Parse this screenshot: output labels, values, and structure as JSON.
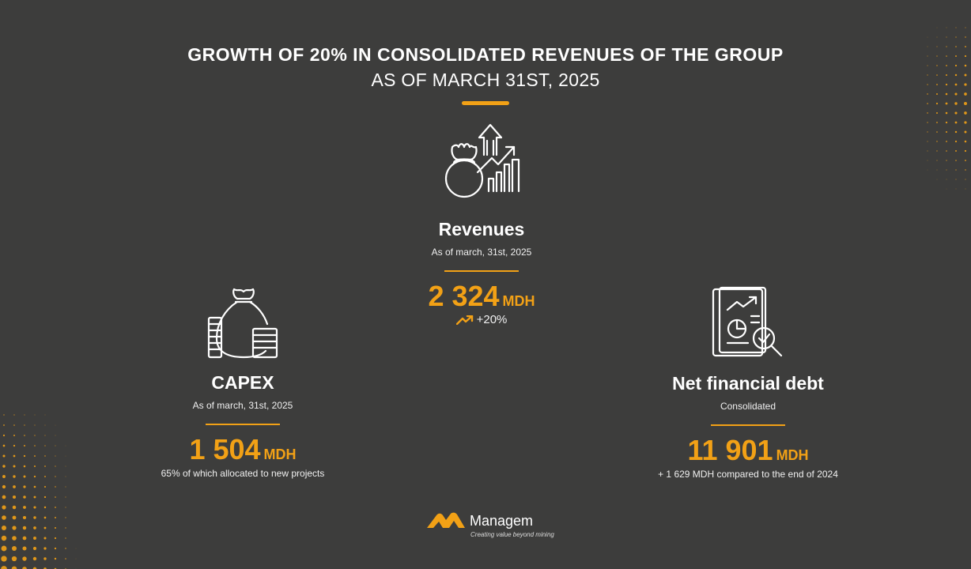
{
  "header": {
    "title": "GROWTH OF 20% IN CONSOLIDATED REVENUES OF THE GROUP",
    "subtitle": "AS OF MARCH 31ST, 2025"
  },
  "colors": {
    "accent": "#f2a116",
    "background": "#3d3d3c",
    "text": "#ffffff"
  },
  "revenues": {
    "icon": "money-bag-growth-chart-icon",
    "title": "Revenues",
    "subtitle": "As of march, 31st, 2025",
    "value": "2 324",
    "unit": "MDH",
    "trend_icon": "trend-up-icon",
    "trend": "+20%"
  },
  "capex": {
    "icon": "money-bag-coins-icon",
    "title": "CAPEX",
    "subtitle": "As of march,  31st, 2025",
    "value": "1 504",
    "unit": "MDH",
    "note": "65% of which allocated to new projects"
  },
  "debt": {
    "icon": "report-magnifier-icon",
    "title": "Net financial debt",
    "subtitle": "Consolidated",
    "value": "11 901",
    "unit": "MDH",
    "note": "+ 1 629 MDH compared to the end of 2024"
  },
  "footer": {
    "logo_icon": "managem-logo-icon",
    "brand": "Managem",
    "tagline": "Creating value beyond mining"
  }
}
